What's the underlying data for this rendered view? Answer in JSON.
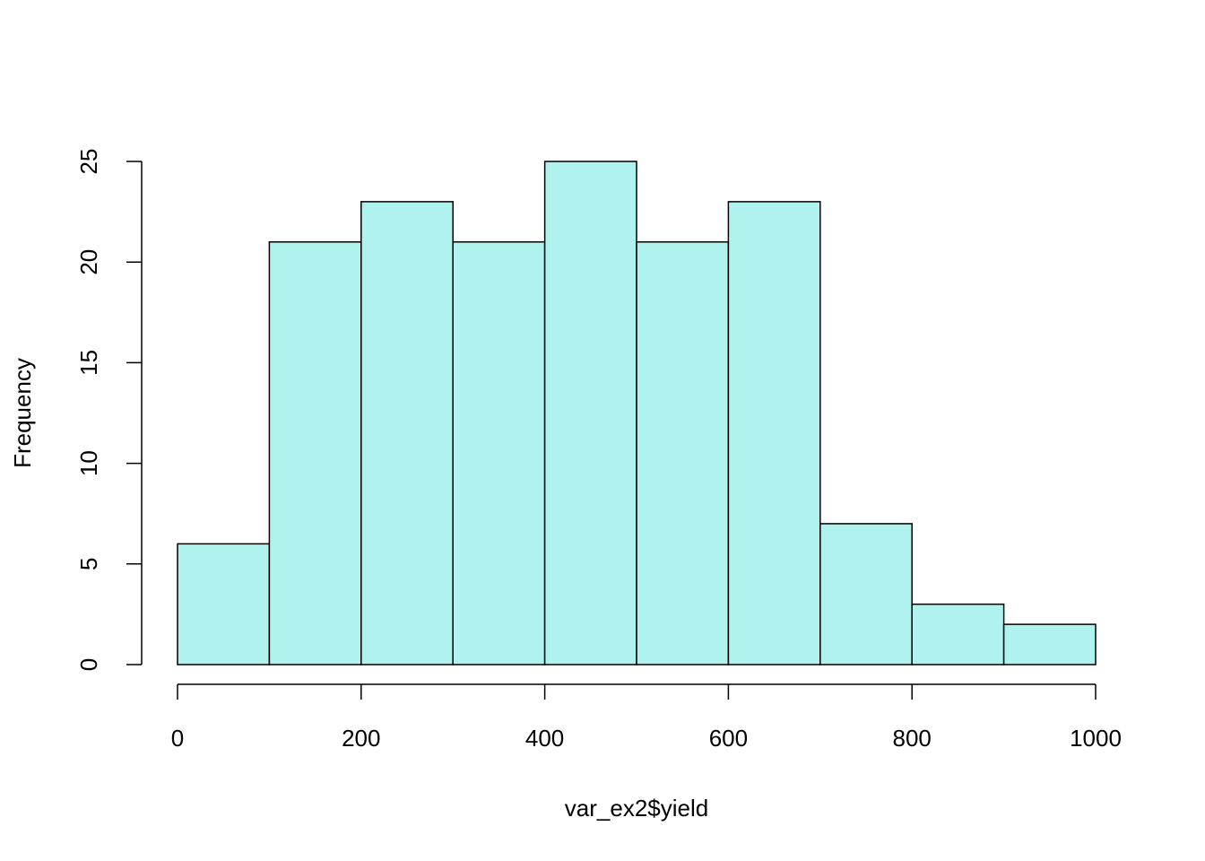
{
  "chart_data": {
    "type": "bar",
    "subtype": "histogram",
    "bins": [
      {
        "start": 0,
        "end": 100,
        "count": 6
      },
      {
        "start": 100,
        "end": 200,
        "count": 21
      },
      {
        "start": 200,
        "end": 300,
        "count": 23
      },
      {
        "start": 300,
        "end": 400,
        "count": 21
      },
      {
        "start": 400,
        "end": 500,
        "count": 25
      },
      {
        "start": 500,
        "end": 600,
        "count": 21
      },
      {
        "start": 600,
        "end": 700,
        "count": 23
      },
      {
        "start": 700,
        "end": 800,
        "count": 7
      },
      {
        "start": 800,
        "end": 900,
        "count": 3
      },
      {
        "start": 900,
        "end": 1000,
        "count": 2
      }
    ],
    "xlabel": "var_ex2$yield",
    "ylabel": "Frequency",
    "xlim": [
      0,
      1000
    ],
    "ylim": [
      0,
      25
    ],
    "xticks": [
      0,
      200,
      400,
      600,
      800,
      1000
    ],
    "yticks": [
      0,
      5,
      10,
      15,
      20,
      25
    ],
    "bar_color": "#b0f3ee",
    "grid": false
  }
}
